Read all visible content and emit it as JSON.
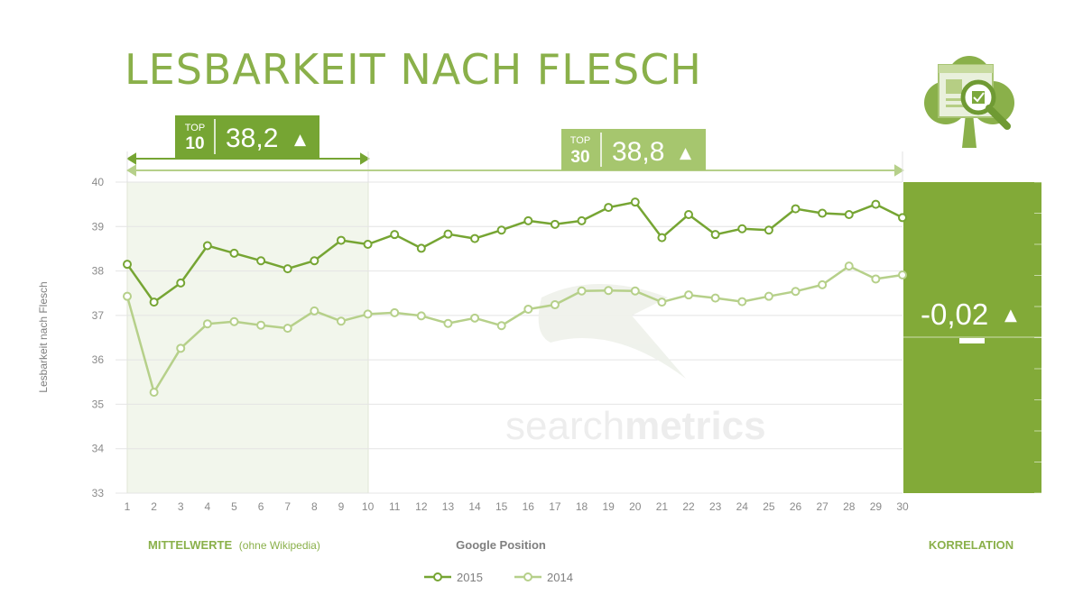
{
  "title": "LESBARKEIT NACH FLESCH",
  "colors": {
    "dark_green": "#76a533",
    "light_green": "#b6d08a",
    "korrelation_panel": "#82aa38",
    "shade": "#f2f6ec",
    "grid": "#e4e4e4",
    "axis_text": "#8a8a8a"
  },
  "top10_badge": {
    "label_top": "TOP",
    "label_num": "10",
    "value": "38,2",
    "arrow": "▲"
  },
  "top30_badge": {
    "label_top": "TOP",
    "label_num": "30",
    "value": "38,8",
    "arrow": "▲"
  },
  "korrelation": {
    "value": "-0,02",
    "arrow": "▲",
    "label": "KORRELATION"
  },
  "footer": {
    "mittelwerte": "MITTELWERTE",
    "ohne": "(ohne Wikipedia)",
    "xlabel": "Google Position"
  },
  "watermark": {
    "light": "search",
    "bold": "metrics"
  },
  "logo_icon": "clover-magnifier-icon",
  "chart_data": {
    "type": "line",
    "title": "LESBARKEIT NACH FLESCH",
    "xlabel": "Google Position",
    "ylabel": "Lesbarkeit nach Flesch",
    "ylim": [
      33,
      40
    ],
    "yticks": [
      33,
      34,
      35,
      36,
      37,
      38,
      39,
      40
    ],
    "x": [
      1,
      2,
      3,
      4,
      5,
      6,
      7,
      8,
      9,
      10,
      11,
      12,
      13,
      14,
      15,
      16,
      17,
      18,
      19,
      20,
      21,
      22,
      23,
      24,
      25,
      26,
      27,
      28,
      29,
      30
    ],
    "series": [
      {
        "name": "2015",
        "values": [
          38.15,
          37.3,
          37.73,
          38.57,
          38.4,
          38.23,
          38.05,
          38.23,
          38.69,
          38.6,
          38.82,
          38.51,
          38.83,
          38.73,
          38.92,
          39.13,
          39.05,
          39.13,
          39.43,
          39.55,
          38.75,
          39.27,
          38.82,
          38.95,
          38.92,
          39.4,
          39.3,
          39.27,
          39.5,
          39.2
        ]
      },
      {
        "name": "2014",
        "values": [
          37.43,
          35.27,
          36.26,
          36.81,
          36.86,
          36.78,
          36.71,
          37.1,
          36.87,
          37.03,
          37.06,
          36.99,
          36.82,
          36.94,
          36.77,
          37.14,
          37.24,
          37.55,
          37.56,
          37.55,
          37.3,
          37.46,
          37.39,
          37.31,
          37.43,
          37.54,
          37.69,
          38.11,
          37.82,
          37.91
        ]
      }
    ],
    "legend": "bottom-center"
  }
}
